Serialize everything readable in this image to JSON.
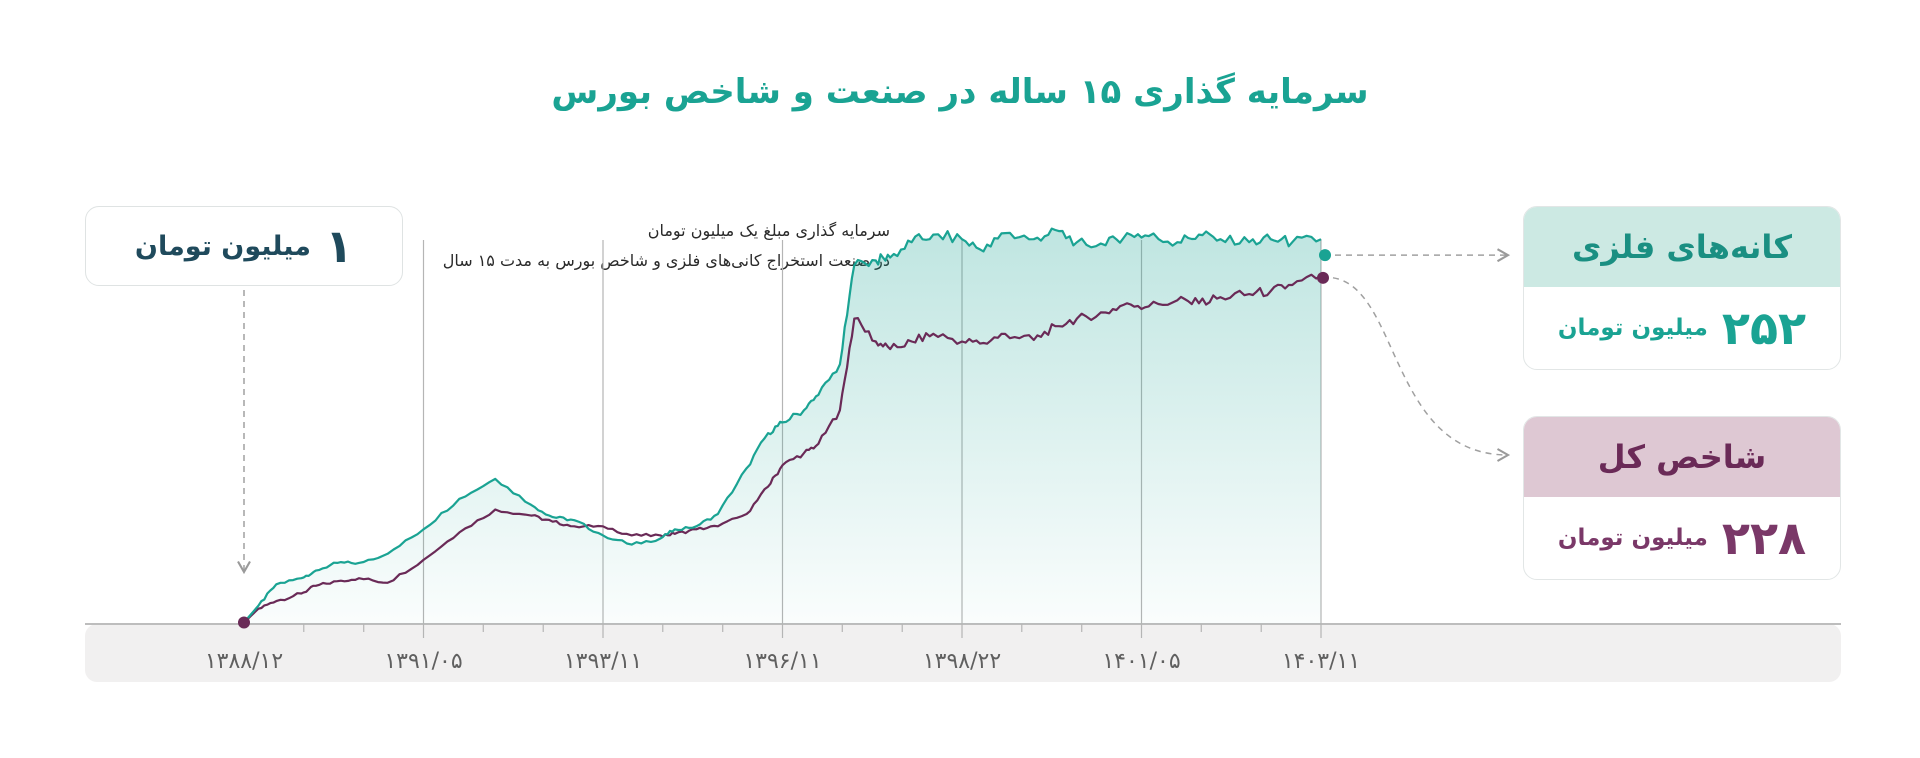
{
  "title": "سرمایه گذاری ۱۵ ساله در صنعت و شاخص بورس",
  "start": {
    "value": "۱",
    "unit": "میلیون تومان"
  },
  "note": {
    "line1": "سرمایه گذاری مبلغ یک میلیون تومان",
    "line2": "در صنعت استخراج کانی‌های فلزی و شاخص بورس به مدت ۱۵ سال"
  },
  "cards": {
    "metals": {
      "label": "کانه‌های فلزی",
      "value": "۲۵۲",
      "unit": "میلیون تومان"
    },
    "index": {
      "label": "شاخص کل",
      "value": "۲۲۸",
      "unit": "میلیون تومان"
    }
  },
  "colors": {
    "metals": "#1aa393",
    "index": "#6a2a57",
    "axis_band": "#f1f0f0"
  },
  "chart_data": {
    "type": "line",
    "title": "سرمایه گذاری ۱۵ ساله در صنعت و شاخص بورس",
    "xlabel": "",
    "ylabel": "",
    "x_tick_labels": [
      "۱۳۸۸/۱۲",
      "۱۳۹۱/۰۵",
      "۱۳۹۳/۱۱",
      "۱۳۹۶/۱۱",
      "۱۳۹۸/۲۲",
      "۱۴۰۱/۰۵",
      "۱۴۰۳/۱۱"
    ],
    "x": [
      0,
      0.2,
      0.45,
      0.8,
      1.0,
      1.3,
      1.6,
      2.0,
      2.5,
      3.0,
      3.5,
      4.0,
      4.3,
      4.6,
      5.0,
      5.4,
      5.8,
      6.0,
      6.3,
      6.6,
      7.0,
      7.3,
      7.5,
      7.8,
      8.0,
      8.3,
      8.5,
      8.8,
      9.0,
      9.3,
      9.6,
      10.0,
      10.3,
      10.6,
      11.0,
      11.3,
      11.6,
      12.0,
      12.3,
      12.6,
      13.0,
      13.3,
      13.6,
      14.0,
      14.3,
      14.6,
      15.0
    ],
    "series": [
      {
        "name": "کانه‌های فلزی",
        "values": [
          1,
          12,
          26,
          30,
          35,
          40,
          40,
          46,
          62,
          82,
          95,
          78,
          70,
          68,
          58,
          52,
          56,
          62,
          64,
          72,
          102,
          125,
          132,
          140,
          150,
          170,
          235,
          238,
          240,
          250,
          255,
          252,
          244,
          256,
          252,
          258,
          250,
          248,
          256,
          254,
          250,
          255,
          252,
          250,
          252,
          250,
          252
        ]
      },
      {
        "name": "شاخص کل",
        "values": [
          1,
          10,
          15,
          20,
          25,
          28,
          30,
          27,
          42,
          60,
          75,
          71,
          67,
          64,
          64,
          58,
          58,
          59,
          62,
          64,
          72,
          90,
          104,
          112,
          118,
          140,
          200,
          185,
          180,
          185,
          190,
          185,
          184,
          190,
          186,
          195,
          200,
          204,
          210,
          208,
          212,
          210,
          214,
          216,
          218,
          222,
          228
        ]
      }
    ]
  }
}
